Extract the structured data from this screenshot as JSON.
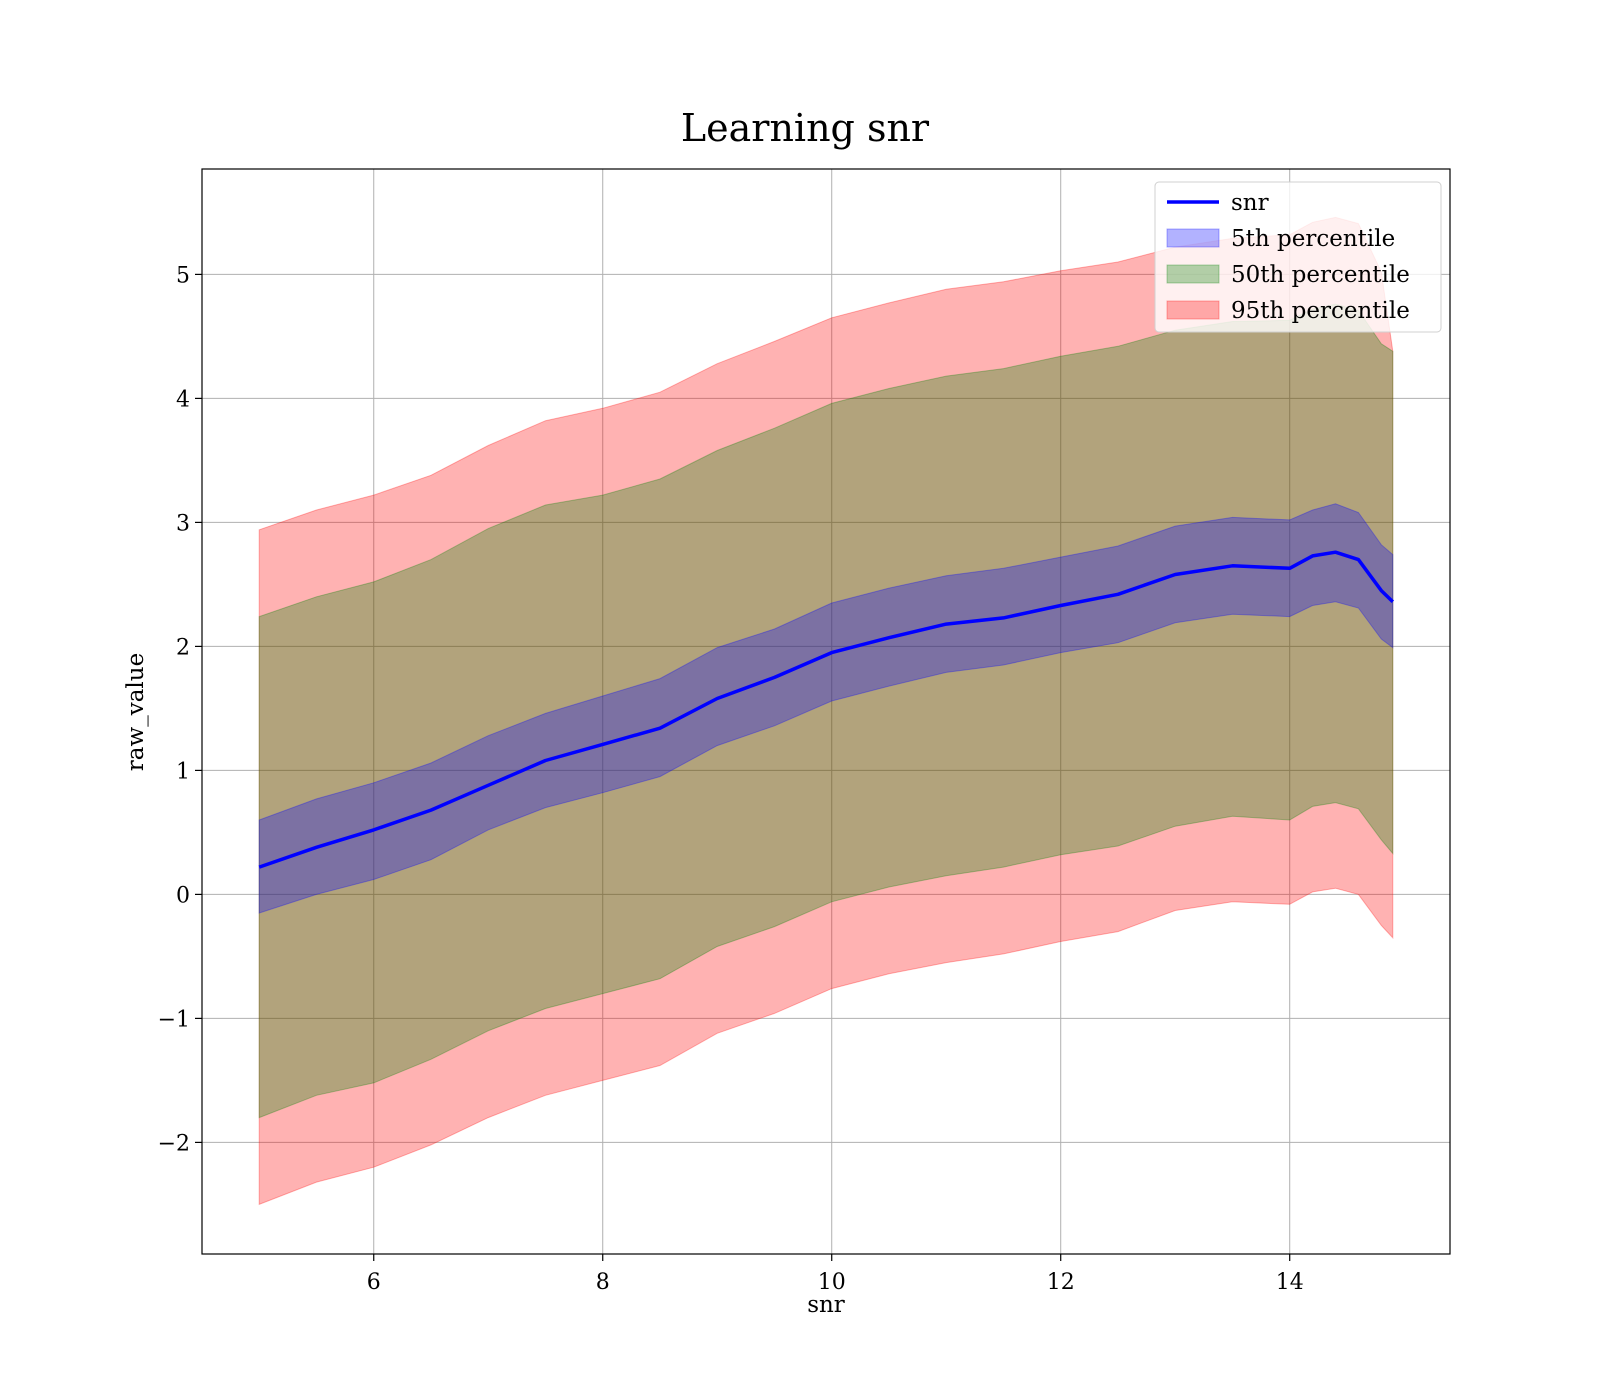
{
  "chart_data": {
    "type": "area",
    "title": "Learning snr",
    "xlabel": "snr",
    "ylabel": "raw_value",
    "xlim": [
      4.5,
      15.4
    ],
    "ylim": [
      -2.9,
      5.85
    ],
    "xticks": [
      6,
      8,
      10,
      12,
      14
    ],
    "yticks": [
      -2,
      -1,
      0,
      1,
      2,
      3,
      4,
      5
    ],
    "grid": true,
    "legend_position": "top-right",
    "x": [
      5.0,
      5.5,
      6.0,
      6.5,
      7.0,
      7.5,
      8.0,
      8.5,
      9.0,
      9.5,
      10.0,
      10.5,
      11.0,
      11.5,
      12.0,
      12.5,
      13.0,
      13.5,
      14.0,
      14.2,
      14.4,
      14.6,
      14.8,
      14.9
    ],
    "line": {
      "name": "snr",
      "color": "#0000ff",
      "values": [
        0.22,
        0.38,
        0.52,
        0.68,
        0.88,
        1.08,
        1.21,
        1.34,
        1.58,
        1.75,
        1.95,
        2.07,
        2.18,
        2.23,
        2.33,
        2.42,
        2.58,
        2.65,
        2.63,
        2.73,
        2.76,
        2.7,
        2.45,
        2.36
      ]
    },
    "bands": [
      {
        "name": "95th percentile",
        "color": "#ff0000",
        "opacity": 0.3,
        "lower": [
          -2.5,
          -2.32,
          -2.2,
          -2.02,
          -1.8,
          -1.62,
          -1.5,
          -1.38,
          -1.12,
          -0.96,
          -0.76,
          -0.64,
          -0.55,
          -0.48,
          -0.38,
          -0.3,
          -0.13,
          -0.06,
          -0.08,
          0.02,
          0.05,
          0.0,
          -0.25,
          -0.35
        ],
        "upper": [
          2.94,
          3.1,
          3.22,
          3.38,
          3.62,
          3.82,
          3.92,
          4.05,
          4.28,
          4.46,
          4.65,
          4.77,
          4.88,
          4.94,
          5.03,
          5.1,
          5.22,
          5.29,
          5.32,
          5.42,
          5.46,
          5.41,
          5.02,
          4.38
        ]
      },
      {
        "name": "50th percentile",
        "color": "#008000",
        "opacity": 0.3,
        "lower": [
          -1.8,
          -1.62,
          -1.52,
          -1.33,
          -1.1,
          -0.92,
          -0.8,
          -0.68,
          -0.42,
          -0.26,
          -0.06,
          0.06,
          0.15,
          0.22,
          0.32,
          0.39,
          0.55,
          0.63,
          0.6,
          0.71,
          0.74,
          0.69,
          0.44,
          0.33
        ],
        "upper": [
          2.24,
          2.4,
          2.52,
          2.7,
          2.95,
          3.14,
          3.22,
          3.35,
          3.58,
          3.76,
          3.96,
          4.08,
          4.18,
          4.24,
          4.34,
          4.42,
          4.55,
          4.62,
          4.63,
          4.72,
          4.76,
          4.71,
          4.44,
          4.38
        ]
      },
      {
        "name": "5th percentile",
        "color": "#0000ff",
        "opacity": 0.3,
        "lower": [
          -0.15,
          0.0,
          0.12,
          0.28,
          0.52,
          0.7,
          0.82,
          0.95,
          1.2,
          1.36,
          1.56,
          1.68,
          1.79,
          1.85,
          1.95,
          2.03,
          2.19,
          2.26,
          2.24,
          2.33,
          2.36,
          2.31,
          2.06,
          1.99
        ],
        "upper": [
          0.6,
          0.77,
          0.9,
          1.06,
          1.28,
          1.46,
          1.6,
          1.74,
          1.99,
          2.14,
          2.35,
          2.47,
          2.57,
          2.63,
          2.72,
          2.81,
          2.97,
          3.04,
          3.02,
          3.1,
          3.15,
          3.08,
          2.82,
          2.74
        ]
      }
    ],
    "legend": [
      {
        "label": "snr",
        "kind": "line",
        "color": "#0000ff"
      },
      {
        "label": "5th percentile",
        "kind": "patch",
        "color": "#0000ff"
      },
      {
        "label": "50th percentile",
        "kind": "patch",
        "color": "#008000"
      },
      {
        "label": "95th percentile",
        "kind": "patch",
        "color": "#ff0000"
      }
    ]
  }
}
